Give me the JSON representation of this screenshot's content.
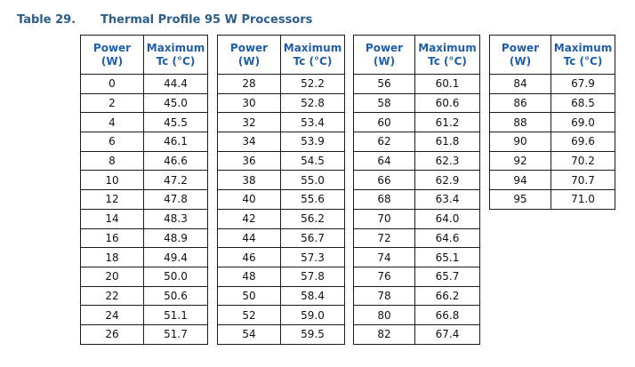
{
  "caption": {
    "table_number": "Table 29.",
    "title": "Thermal Profile 95 W Processors"
  },
  "headers": {
    "power_line1": "Power",
    "power_line2": "(W)",
    "tc_line1": "Maximum",
    "tc_line2": "Tc (°C)"
  },
  "tables": [
    {
      "rows": [
        [
          "0",
          "44.4"
        ],
        [
          "2",
          "45.0"
        ],
        [
          "4",
          "45.5"
        ],
        [
          "6",
          "46.1"
        ],
        [
          "8",
          "46.6"
        ],
        [
          "10",
          "47.2"
        ],
        [
          "12",
          "47.8"
        ],
        [
          "14",
          "48.3"
        ],
        [
          "16",
          "48.9"
        ],
        [
          "18",
          "49.4"
        ],
        [
          "20",
          "50.0"
        ],
        [
          "22",
          "50.6"
        ],
        [
          "24",
          "51.1"
        ],
        [
          "26",
          "51.7"
        ]
      ]
    },
    {
      "rows": [
        [
          "28",
          "52.2"
        ],
        [
          "30",
          "52.8"
        ],
        [
          "32",
          "53.4"
        ],
        [
          "34",
          "53.9"
        ],
        [
          "36",
          "54.5"
        ],
        [
          "38",
          "55.0"
        ],
        [
          "40",
          "55.6"
        ],
        [
          "42",
          "56.2"
        ],
        [
          "44",
          "56.7"
        ],
        [
          "46",
          "57.3"
        ],
        [
          "48",
          "57.8"
        ],
        [
          "50",
          "58.4"
        ],
        [
          "52",
          "59.0"
        ],
        [
          "54",
          "59.5"
        ]
      ]
    },
    {
      "rows": [
        [
          "56",
          "60.1"
        ],
        [
          "58",
          "60.6"
        ],
        [
          "60",
          "61.2"
        ],
        [
          "62",
          "61.8"
        ],
        [
          "64",
          "62.3"
        ],
        [
          "66",
          "62.9"
        ],
        [
          "68",
          "63.4"
        ],
        [
          "70",
          "64.0"
        ],
        [
          "72",
          "64.6"
        ],
        [
          "74",
          "65.1"
        ],
        [
          "76",
          "65.7"
        ],
        [
          "78",
          "66.2"
        ],
        [
          "80",
          "66.8"
        ],
        [
          "82",
          "67.4"
        ]
      ]
    },
    {
      "rows": [
        [
          "84",
          "67.9"
        ],
        [
          "86",
          "68.5"
        ],
        [
          "88",
          "69.0"
        ],
        [
          "90",
          "69.6"
        ],
        [
          "92",
          "70.2"
        ],
        [
          "94",
          "70.7"
        ],
        [
          "95",
          "71.0"
        ]
      ]
    }
  ]
}
